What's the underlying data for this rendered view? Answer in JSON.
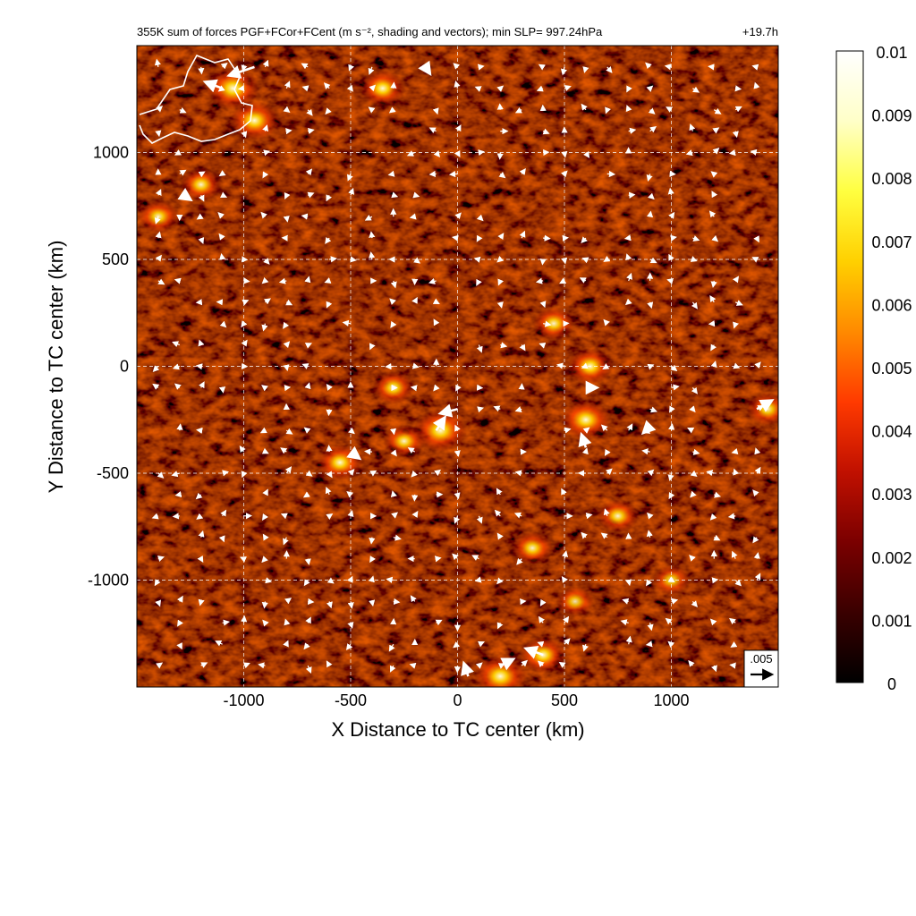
{
  "chart_data": {
    "type": "heatmap",
    "title": "355K sum of forces PGF+FCor+FCent (m s⁻², shading and vectors); min SLP= 997.24hPa",
    "time_label": "+19.7h",
    "xlabel": "X Distance to TC center (km)",
    "ylabel": "Y Distance to TC center (km)",
    "xlim": [
      -1500,
      1500
    ],
    "ylim": [
      -1500,
      1500
    ],
    "x_ticks": [
      -1000,
      -500,
      0,
      500,
      1000
    ],
    "x_tick_labels": [
      "-1000",
      "-500",
      "0",
      "500",
      "1000"
    ],
    "y_ticks": [
      1000,
      500,
      0,
      -500,
      -1000
    ],
    "y_tick_labels": [
      "1000",
      "500",
      "0",
      "-500",
      "-1000"
    ],
    "grid": true,
    "colorbar": {
      "min": 0,
      "max": 0.01,
      "ticks": [
        0.01,
        0.009,
        0.008,
        0.007,
        0.006,
        0.005,
        0.004,
        0.003,
        0.002,
        0.001,
        0
      ],
      "tick_labels": [
        "0.01",
        "0.009",
        "0.008",
        "0.007",
        "0.006",
        "0.005",
        "0.004",
        "0.003",
        "0.002",
        "0.001",
        "0"
      ],
      "colors": [
        "#000000",
        "#3a0000",
        "#7a0000",
        "#c01000",
        "#ff3a00",
        "#ff8a00",
        "#ffd000",
        "#ffff40",
        "#ffffc8",
        "#ffffff"
      ]
    },
    "reference_vector": {
      "label": ".005",
      "magnitude": 0.005
    },
    "hotspots": [
      {
        "x": -1050,
        "y": 1300,
        "value": 0.009
      },
      {
        "x": -950,
        "y": 1150,
        "value": 0.008
      },
      {
        "x": -350,
        "y": 1300,
        "value": 0.007
      },
      {
        "x": -1200,
        "y": 850,
        "value": 0.006
      },
      {
        "x": -1400,
        "y": 700,
        "value": 0.006
      },
      {
        "x": -80,
        "y": -300,
        "value": 0.009
      },
      {
        "x": -250,
        "y": -350,
        "value": 0.006
      },
      {
        "x": -300,
        "y": -100,
        "value": 0.006
      },
      {
        "x": -550,
        "y": -450,
        "value": 0.007
      },
      {
        "x": 600,
        "y": -250,
        "value": 0.008
      },
      {
        "x": 620,
        "y": 0,
        "value": 0.007
      },
      {
        "x": 450,
        "y": 200,
        "value": 0.006
      },
      {
        "x": 750,
        "y": -700,
        "value": 0.006
      },
      {
        "x": 350,
        "y": -850,
        "value": 0.006
      },
      {
        "x": 200,
        "y": -1450,
        "value": 0.009
      },
      {
        "x": 400,
        "y": -1350,
        "value": 0.007
      },
      {
        "x": 1450,
        "y": -200,
        "value": 0.006
      },
      {
        "x": 550,
        "y": -1100,
        "value": 0.005
      },
      {
        "x": 1000,
        "y": -1000,
        "value": 0.005
      }
    ],
    "large_vectors": [
      {
        "x": -950,
        "y": 1400,
        "u": -0.006,
        "v": -0.002
      },
      {
        "x": -1100,
        "y": 1300,
        "u": -0.004,
        "v": 0.0015
      },
      {
        "x": -1280,
        "y": 800,
        "u": 0.0015,
        "v": -0.001
      },
      {
        "x": 0,
        "y": -200,
        "u": -0.004,
        "v": -0.001
      },
      {
        "x": -100,
        "y": -300,
        "u": 0.002,
        "v": 0.003
      },
      {
        "x": -500,
        "y": -400,
        "u": 0.002,
        "v": -0.0015
      },
      {
        "x": 600,
        "y": -380,
        "u": -0.001,
        "v": 0.003
      },
      {
        "x": 600,
        "y": -100,
        "u": 0.0025,
        "v": 0
      },
      {
        "x": 900,
        "y": -280,
        "u": -0.0015,
        "v": -0.0015
      },
      {
        "x": 1400,
        "y": -200,
        "u": 0.0035,
        "v": 0.002
      },
      {
        "x": 50,
        "y": -1450,
        "u": -0.001,
        "v": 0.003
      },
      {
        "x": 200,
        "y": -1400,
        "u": 0.003,
        "v": 0.0015
      },
      {
        "x": 400,
        "y": -1350,
        "u": -0.004,
        "v": 0.0015
      },
      {
        "x": -150,
        "y": 1400,
        "u": 0.001,
        "v": -0.0015
      }
    ]
  }
}
